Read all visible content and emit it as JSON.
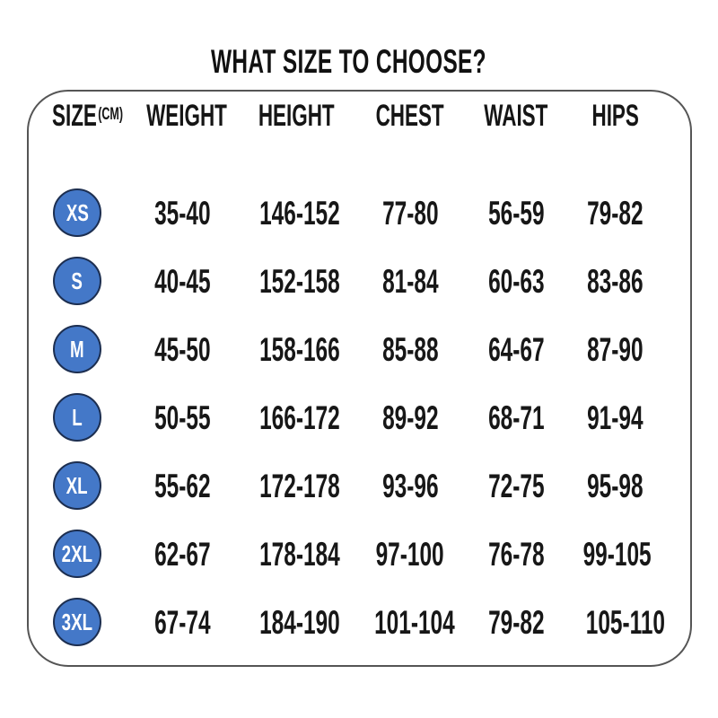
{
  "title": "WHAT SIZE TO CHOOSE?",
  "colors": {
    "badge_fill": "#4478c8",
    "badge_border": "#1c2e50",
    "text": "#171717",
    "panel_border": "#555555",
    "background": "#ffffff"
  },
  "chart_data": {
    "type": "table",
    "title": "WHAT SIZE TO CHOOSE?",
    "unit": "(CM)",
    "columns": [
      "SIZE",
      "WEIGHT",
      "HEIGHT",
      "CHEST",
      "WAIST",
      "HIPS"
    ],
    "rows": [
      [
        "XS",
        "35-40",
        "146-152",
        "77-80",
        "56-59",
        "79-82"
      ],
      [
        "S",
        "40-45",
        "152-158",
        "81-84",
        "60-63",
        "83-86"
      ],
      [
        "M",
        "45-50",
        "158-166",
        "85-88",
        "64-67",
        "87-90"
      ],
      [
        "L",
        "50-55",
        "166-172",
        "89-92",
        "68-71",
        "91-94"
      ],
      [
        "XL",
        "55-62",
        "172-178",
        "93-96",
        "72-75",
        "95-98"
      ],
      [
        "2XL",
        "62-67",
        "178-184",
        "97-100",
        "76-78",
        "99-105"
      ],
      [
        "3XL",
        "67-74",
        "184-190",
        "101-104",
        "79-82",
        "105-110"
      ]
    ]
  }
}
